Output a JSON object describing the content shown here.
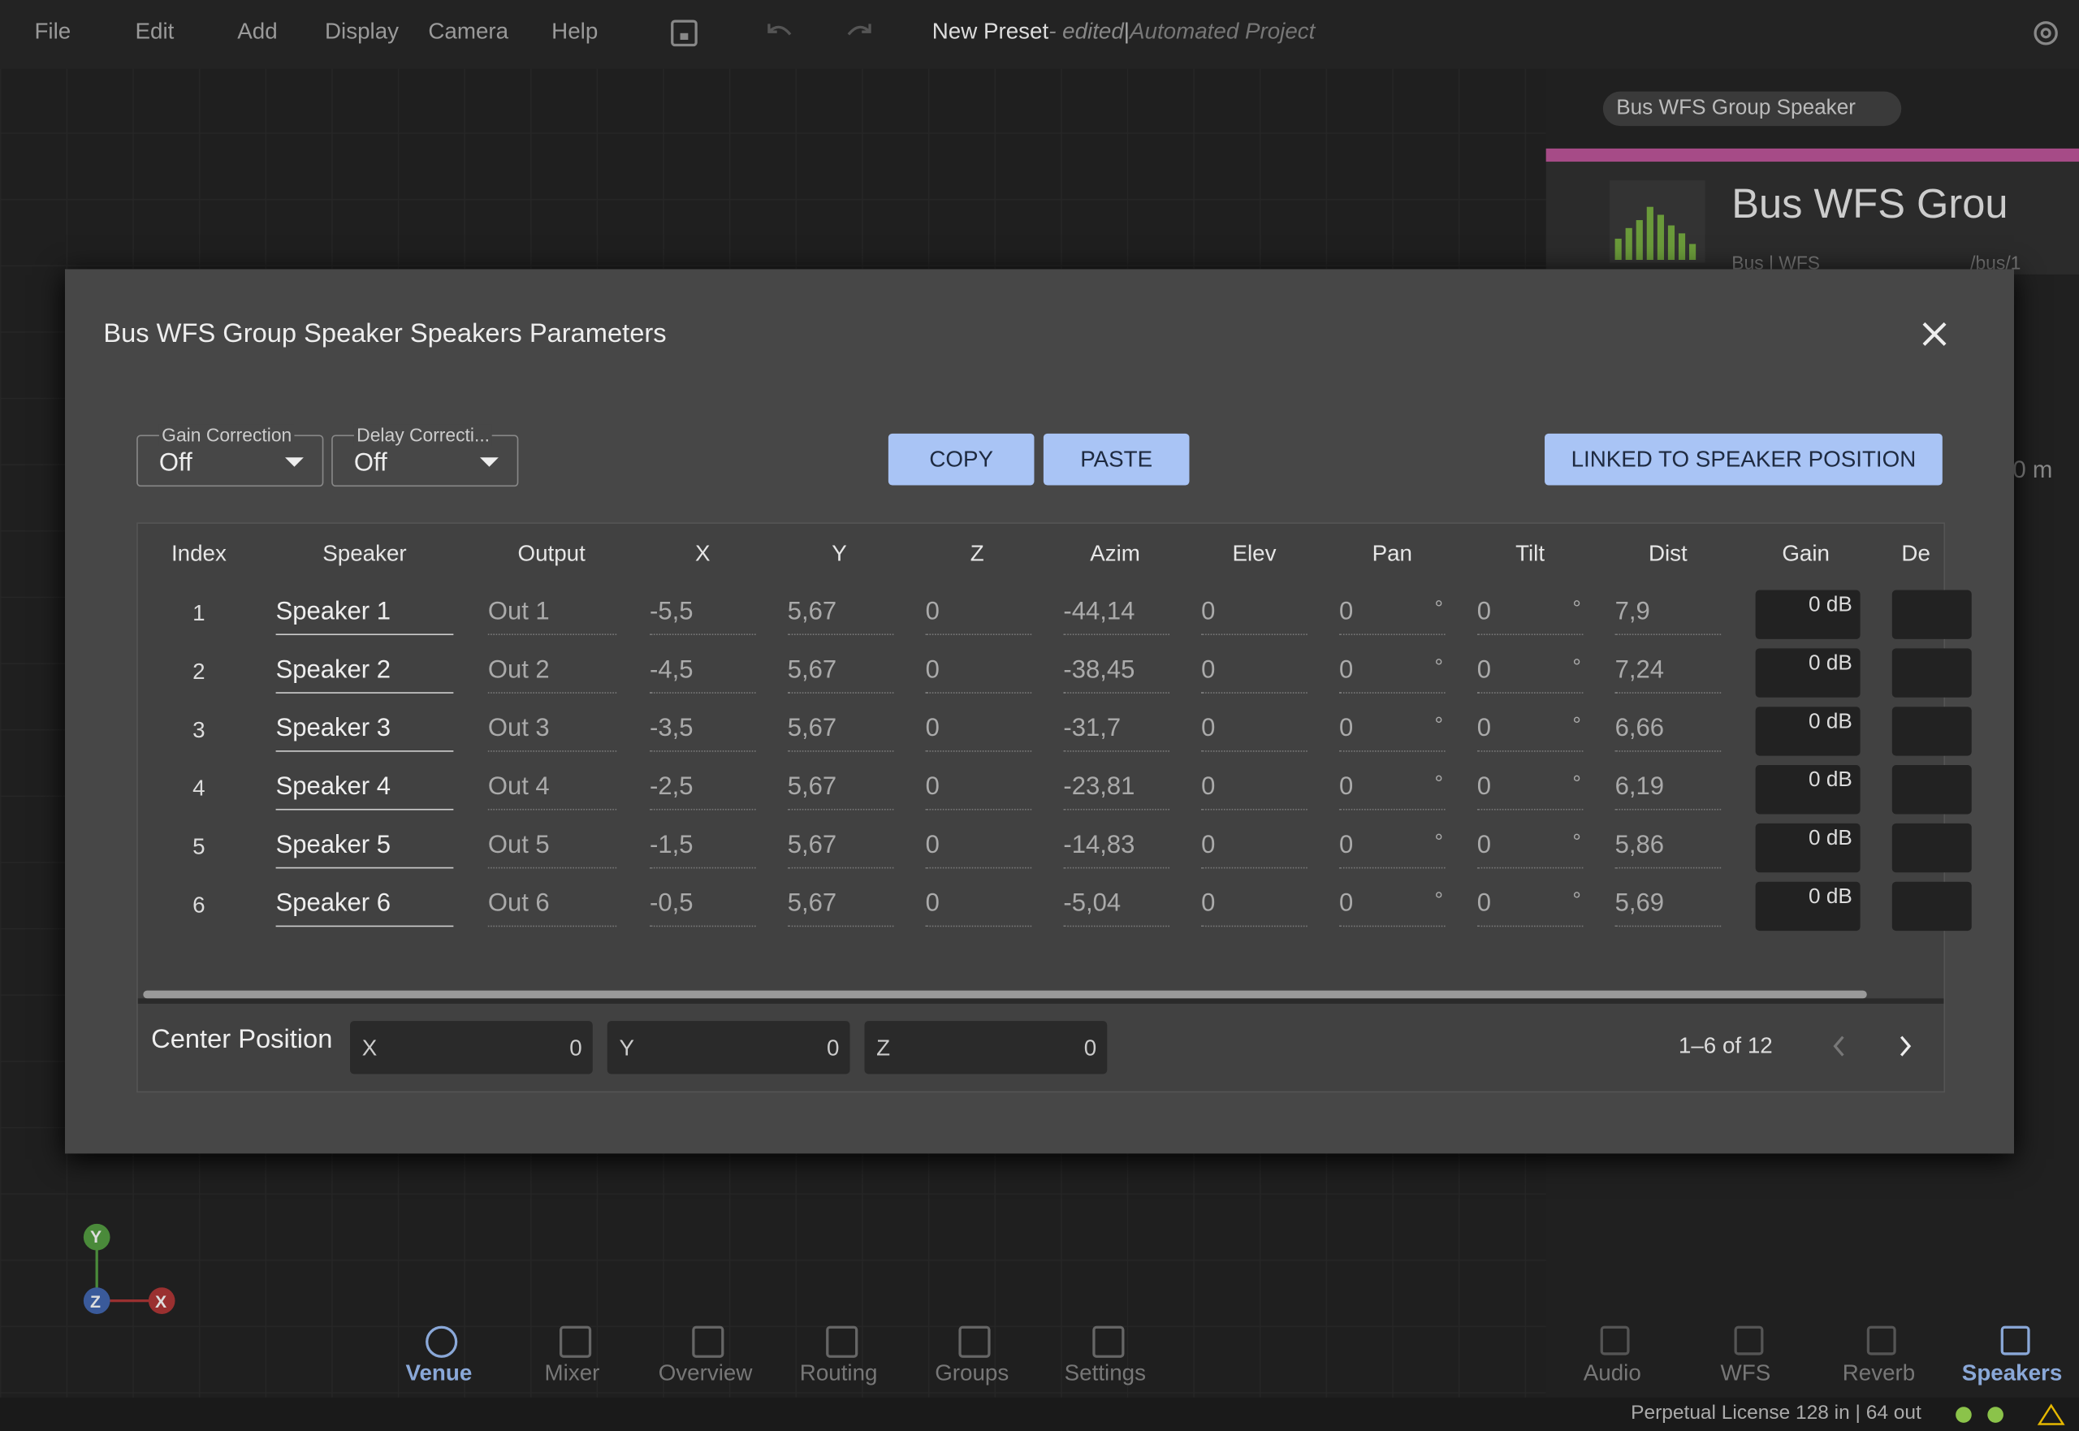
{
  "menu": [
    "File",
    "Edit",
    "Add",
    "Display",
    "Camera",
    "Help"
  ],
  "title_bar": {
    "preset": "New Preset",
    "status": "- edited",
    "separator": "|",
    "project": "Automated Project"
  },
  "side_panel": {
    "tag": "Bus WFS Group Speaker",
    "name": "Bus WFS Grou",
    "kind": "Bus | WFS",
    "address": "/bus/1",
    "field": "0 m"
  },
  "dialog": {
    "title": "Bus WFS Group Speaker Speakers Parameters",
    "gain_correction": {
      "label": "Gain Correction",
      "value": "Off"
    },
    "delay_correction": {
      "label": "Delay Correcti...",
      "value": "Off"
    },
    "buttons": [
      "COPY",
      "PASTE",
      "LINKED TO SPEAKER POSITION"
    ],
    "table": {
      "columns": [
        "Index",
        "Speaker",
        "Output",
        "X",
        "Y",
        "Z",
        "Azim",
        "Elev",
        "Pan",
        "Tilt",
        "Dist",
        "Gain",
        "De"
      ],
      "angle_unit": "°",
      "rows": [
        [
          1,
          "Speaker 1",
          "Out 1",
          "-5,5",
          "5,67",
          "0",
          "-44,14",
          "0",
          "0",
          "0",
          "7,9",
          "0 dB"
        ],
        [
          2,
          "Speaker 2",
          "Out 2",
          "-4,5",
          "5,67",
          "0",
          "-38,45",
          "0",
          "0",
          "0",
          "7,24",
          "0 dB"
        ],
        [
          3,
          "Speaker 3",
          "Out 3",
          "-3,5",
          "5,67",
          "0",
          "-31,7",
          "0",
          "0",
          "0",
          "6,66",
          "0 dB"
        ],
        [
          4,
          "Speaker 4",
          "Out 4",
          "-2,5",
          "5,67",
          "0",
          "-23,81",
          "0",
          "0",
          "0",
          "6,19",
          "0 dB"
        ],
        [
          5,
          "Speaker 5",
          "Out 5",
          "-1,5",
          "5,67",
          "0",
          "-14,83",
          "0",
          "0",
          "0",
          "5,86",
          "0 dB"
        ],
        [
          6,
          "Speaker 6",
          "Out 6",
          "-0,5",
          "5,67",
          "0",
          "-5,04",
          "0",
          "0",
          "0",
          "5,69",
          "0 dB"
        ]
      ]
    },
    "center_position": {
      "label": "Center Position",
      "fields": [
        [
          "X",
          "0"
        ],
        [
          "Y",
          "0"
        ],
        [
          "Z",
          "0"
        ]
      ]
    },
    "pagination": "1–6 of 12"
  },
  "bottom_nav": [
    "Venue",
    "Mixer",
    "Overview",
    "Routing",
    "Groups",
    "Settings"
  ],
  "panel_nav": [
    "Audio",
    "WFS",
    "Reverb",
    "Speakers"
  ],
  "axes": [
    "Y",
    "Z",
    "X"
  ],
  "status_bar": "Perpetual License 128 in | 64 out"
}
